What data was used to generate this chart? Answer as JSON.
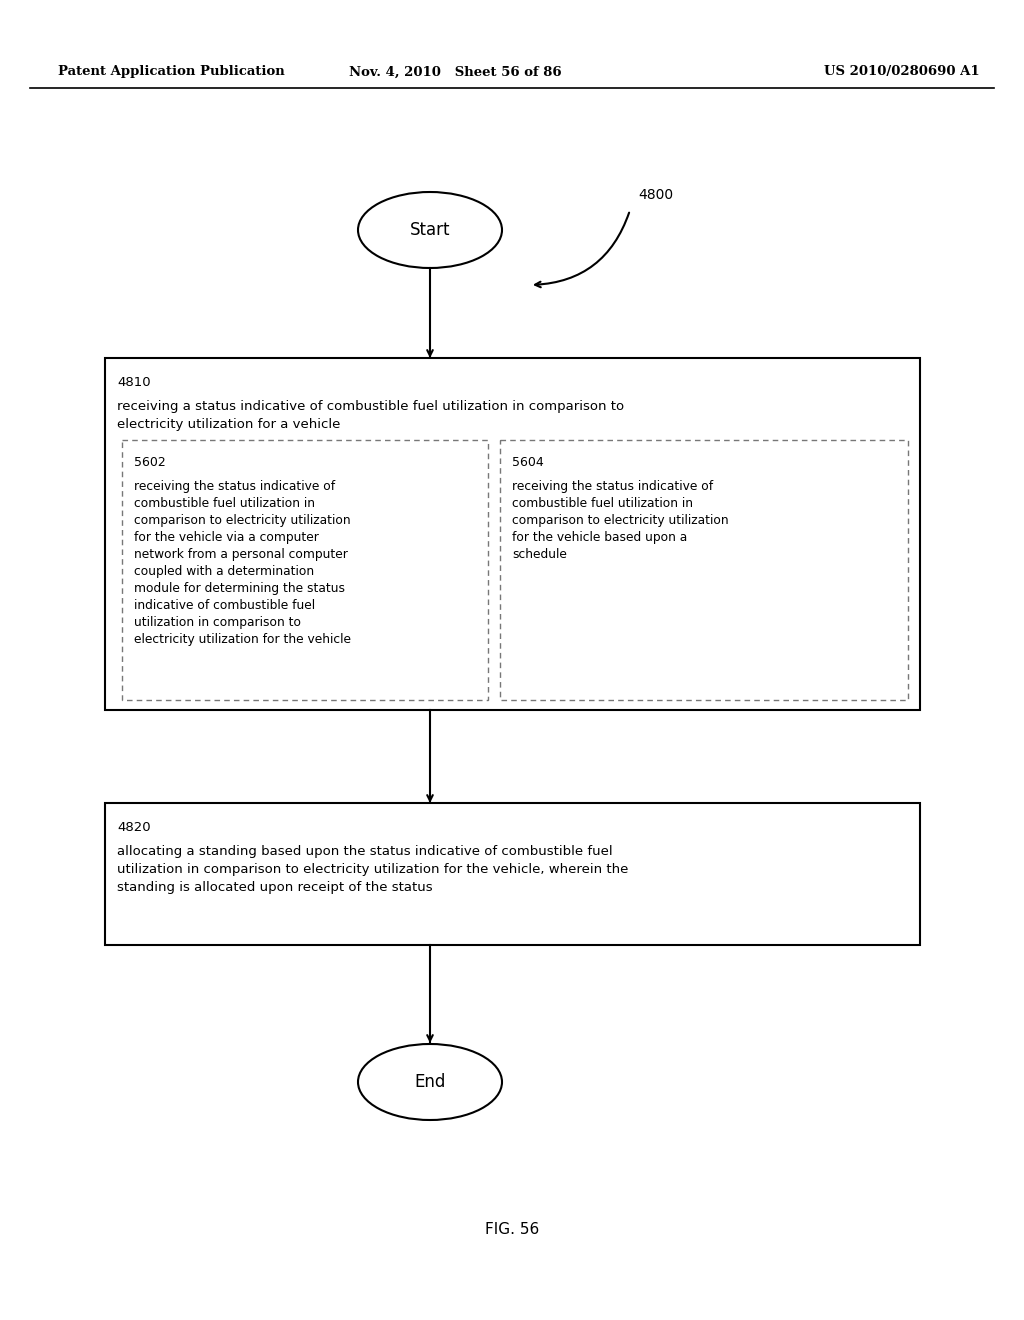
{
  "header_left": "Patent Application Publication",
  "header_mid": "Nov. 4, 2010   Sheet 56 of 86",
  "header_right": "US 2010/0280690 A1",
  "figure_label": "FIG. 56",
  "diagram_label": "4800",
  "start_label": "Start",
  "end_label": "End",
  "box4810_id": "4810",
  "box4810_text": "receiving a status indicative of combustible fuel utilization in comparison to\nelectricity utilization for a vehicle",
  "box5602_id": "5602",
  "box5602_text": "receiving the status indicative of\ncombustible fuel utilization in\ncomparison to electricity utilization\nfor the vehicle via a computer\nnetwork from a personal computer\ncoupled with a determination\nmodule for determining the status\nindicative of combustible fuel\nutilization in comparison to\nelectricity utilization for the vehicle",
  "box5604_id": "5604",
  "box5604_text": "receiving the status indicative of\ncombustible fuel utilization in\ncomparison to electricity utilization\nfor the vehicle based upon a\nschedule",
  "box4820_id": "4820",
  "box4820_text": "allocating a standing based upon the status indicative of combustible fuel\nutilization in comparison to electricity utilization for the vehicle, wherein the\nstanding is allocated upon receipt of the status",
  "bg_color": "#ffffff",
  "line_color": "#000000",
  "text_color": "#000000",
  "box_edge_color": "#000000",
  "dashed_color": "#777777"
}
